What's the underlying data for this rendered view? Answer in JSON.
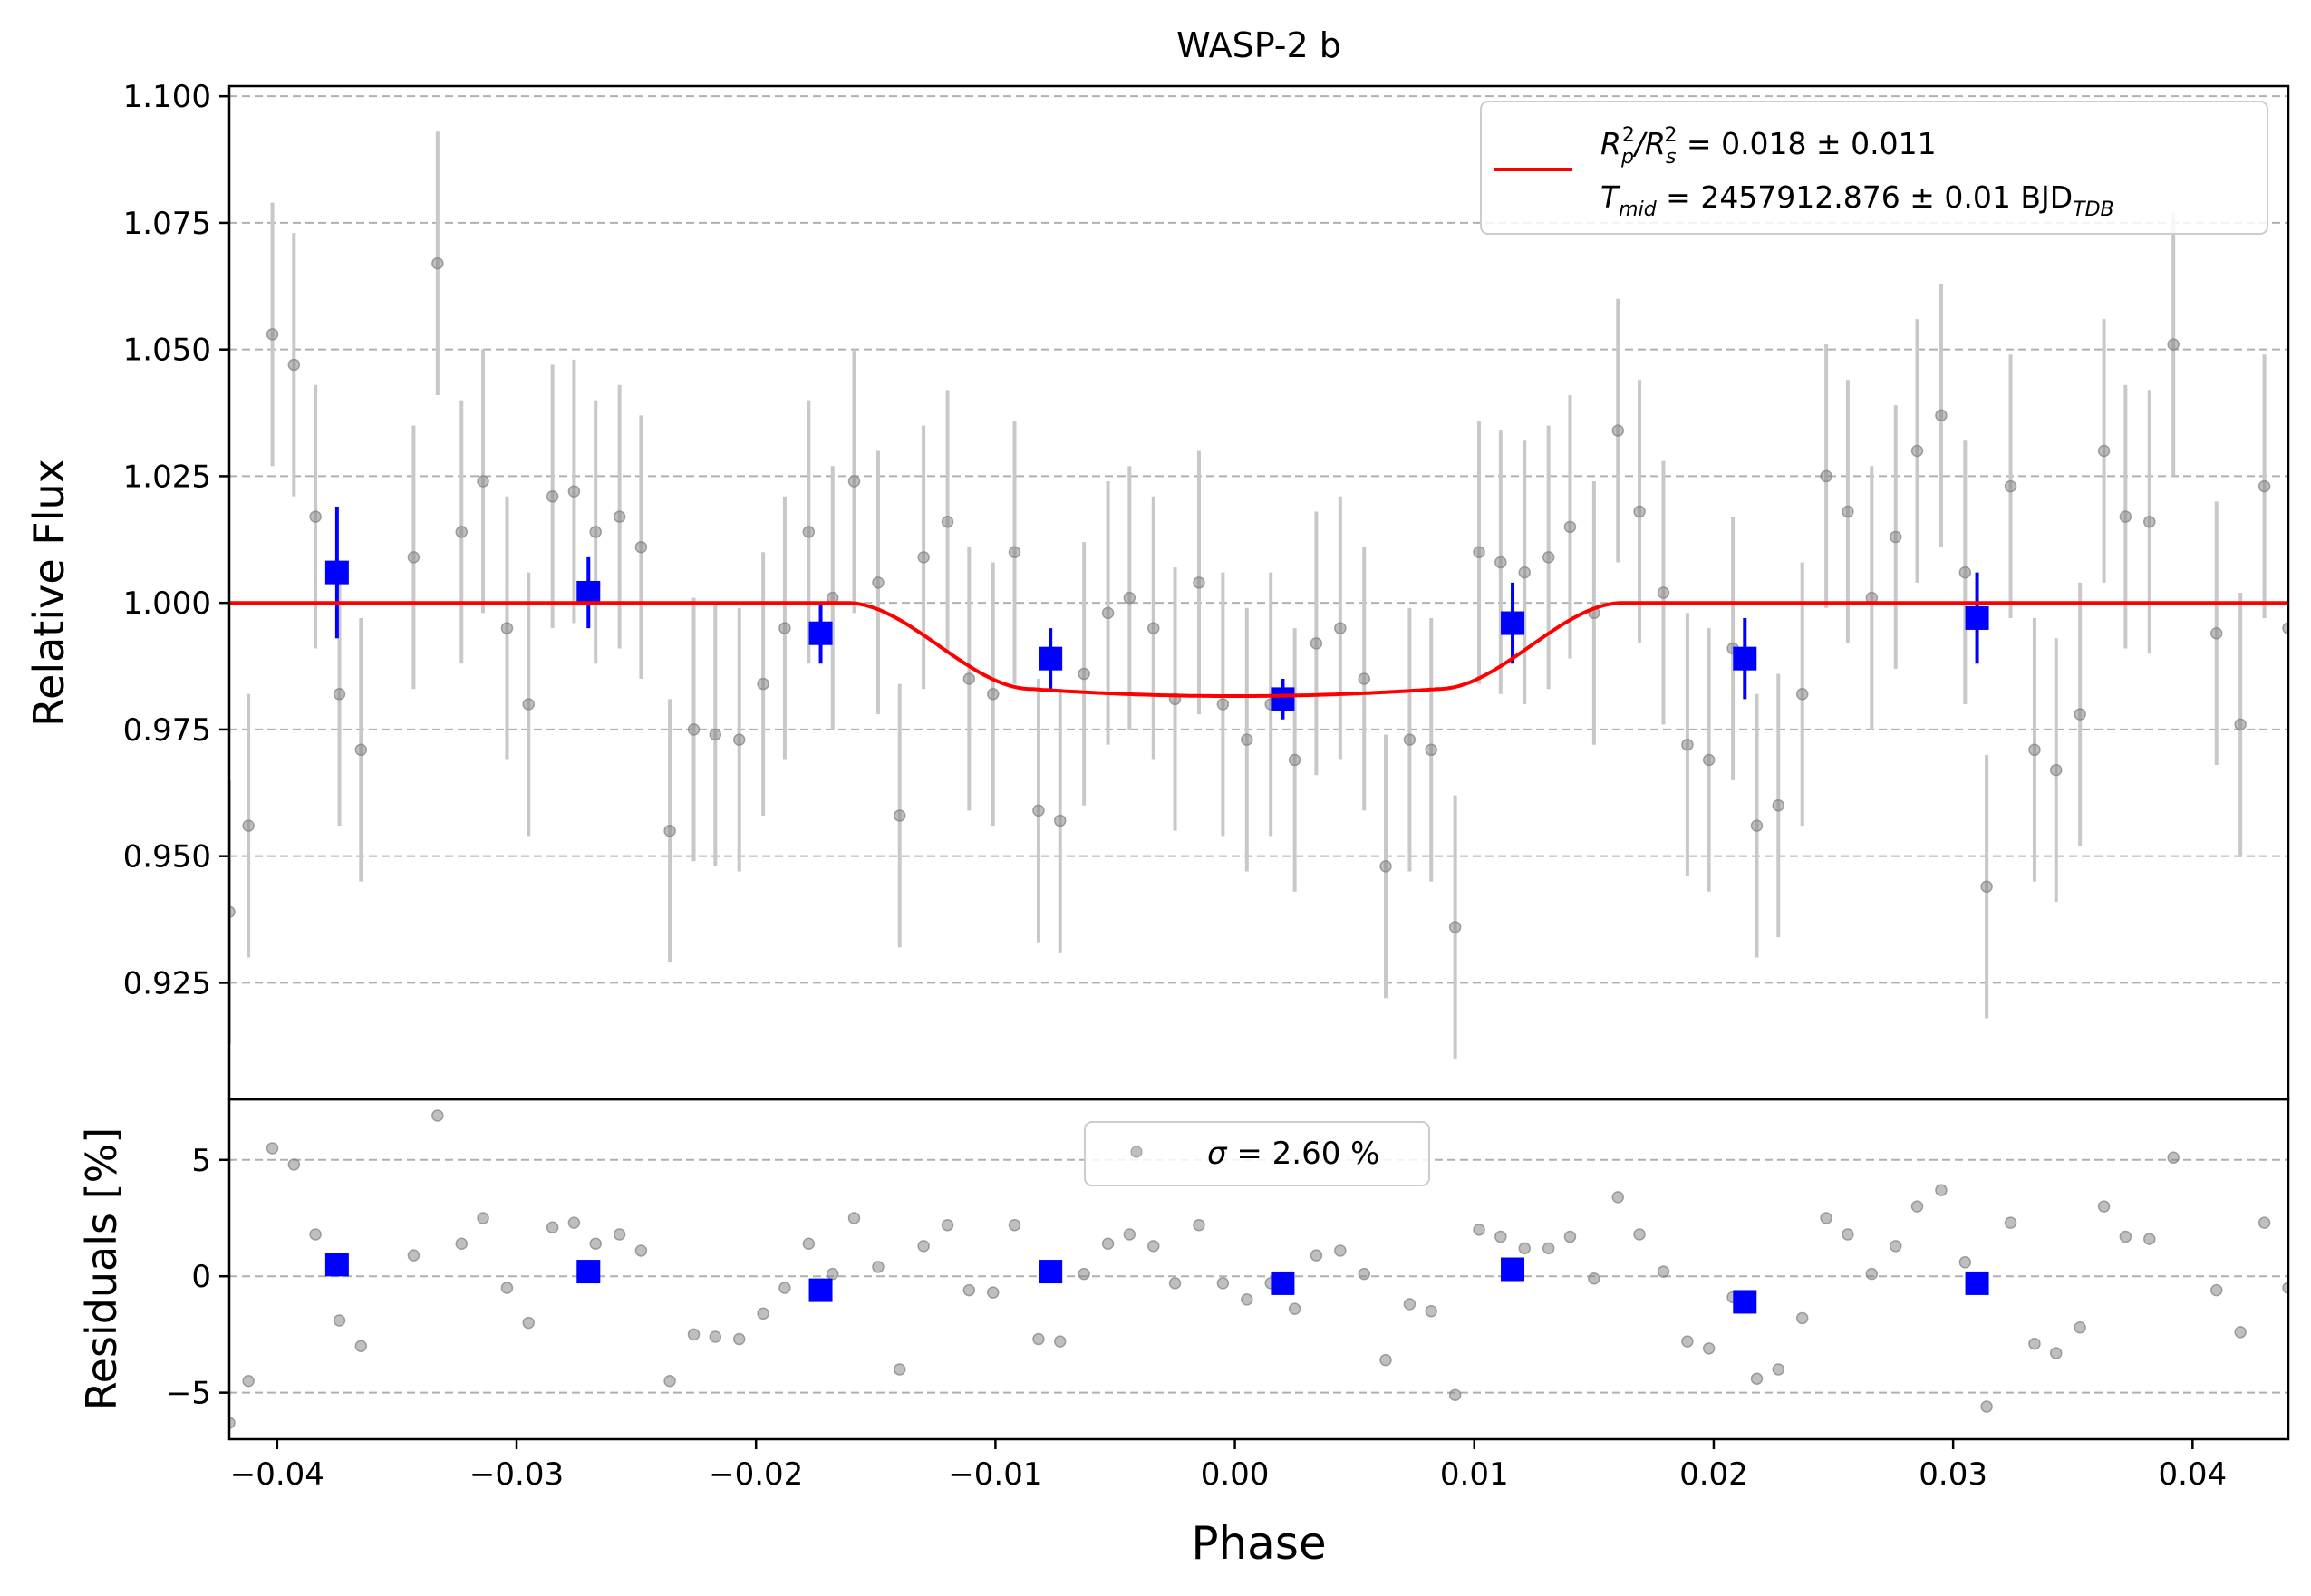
{
  "chart_data": [
    {
      "type": "scatter",
      "panel": "main",
      "title": "WASP-2 b",
      "xlabel": "",
      "ylabel": "Relative Flux",
      "xlim": [
        -0.042,
        0.044
      ],
      "ylim": [
        0.902,
        1.102
      ],
      "yticks": [
        {
          "v": 0.925,
          "label": "0.925"
        },
        {
          "v": 0.95,
          "label": "0.950"
        },
        {
          "v": 0.975,
          "label": "0.975"
        },
        {
          "v": 1.0,
          "label": "1.000"
        },
        {
          "v": 1.025,
          "label": "1.025"
        },
        {
          "v": 1.05,
          "label": "1.050"
        },
        {
          "v": 1.075,
          "label": "1.075"
        },
        {
          "v": 1.1,
          "label": "1.100"
        }
      ],
      "grid": "horizontal dashed",
      "legend_position": "top-right",
      "legend": {
        "line1": {
          "prefix": "R",
          "sub1": "p",
          "sup1": "2",
          "mid": "/R",
          "sub2": "s",
          "sup2": "2",
          "rest": " = 0.018 ± 0.011"
        },
        "line2": {
          "prefix": "T",
          "sub1": "mid",
          "rest": " = 2457912.876 ± 0.01 BJD",
          "sub2": "TDB"
        }
      },
      "colors": {
        "data": "#808080",
        "errorbar": "#c8c8c8",
        "binned": "#0000ff",
        "model": "#ff0000",
        "grid": "#b0b0b0"
      },
      "series": [
        {
          "kind": "data",
          "error": 0.026,
          "points": [
            [
              -0.042,
              0.939
            ],
            [
              -0.0412,
              0.956
            ],
            [
              -0.0402,
              1.053
            ],
            [
              -0.0393,
              1.047
            ],
            [
              -0.0384,
              1.017
            ],
            [
              -0.0374,
              0.982
            ],
            [
              -0.0365,
              0.971
            ],
            [
              -0.0343,
              1.009
            ],
            [
              -0.0333,
              1.067
            ],
            [
              -0.0323,
              1.014
            ],
            [
              -0.0314,
              1.024
            ],
            [
              -0.0304,
              0.995
            ],
            [
              -0.0295,
              0.98
            ],
            [
              -0.0285,
              1.021
            ],
            [
              -0.0276,
              1.022
            ],
            [
              -0.0267,
              1.014
            ],
            [
              -0.0257,
              1.017
            ],
            [
              -0.0248,
              1.011
            ],
            [
              -0.0236,
              0.955
            ],
            [
              -0.0226,
              0.975
            ],
            [
              -0.0217,
              0.974
            ],
            [
              -0.0207,
              0.973
            ],
            [
              -0.0197,
              0.984
            ],
            [
              -0.0188,
              0.995
            ],
            [
              -0.0178,
              1.014
            ],
            [
              -0.0168,
              1.001
            ],
            [
              -0.0159,
              1.024
            ],
            [
              -0.0149,
              1.004
            ],
            [
              -0.014,
              0.958
            ],
            [
              -0.013,
              1.009
            ],
            [
              -0.012,
              1.016
            ],
            [
              -0.0111,
              0.985
            ],
            [
              -0.0101,
              0.982
            ],
            [
              -0.0092,
              1.01
            ],
            [
              -0.0082,
              0.959
            ],
            [
              -0.0073,
              0.957
            ],
            [
              -0.0063,
              0.986
            ],
            [
              -0.0053,
              0.998
            ],
            [
              -0.0044,
              1.001
            ],
            [
              -0.0034,
              0.995
            ],
            [
              -0.0025,
              0.981
            ],
            [
              -0.0015,
              1.004
            ],
            [
              -0.0005,
              0.98
            ],
            [
              0.0005,
              0.973
            ],
            [
              0.0015,
              0.98
            ],
            [
              0.0025,
              0.969
            ],
            [
              0.0034,
              0.992
            ],
            [
              0.0044,
              0.995
            ],
            [
              0.0054,
              0.985
            ],
            [
              0.0063,
              0.948
            ],
            [
              0.0073,
              0.973
            ],
            [
              0.0082,
              0.971
            ],
            [
              0.0092,
              0.936
            ],
            [
              0.0102,
              1.01
            ],
            [
              0.0111,
              1.008
            ],
            [
              0.0121,
              1.006
            ],
            [
              0.0131,
              1.009
            ],
            [
              0.014,
              1.015
            ],
            [
              0.015,
              0.998
            ],
            [
              0.016,
              1.034
            ],
            [
              0.0169,
              1.018
            ],
            [
              0.0179,
              1.002
            ],
            [
              0.0189,
              0.972
            ],
            [
              0.0198,
              0.969
            ],
            [
              0.0208,
              0.991
            ],
            [
              0.0218,
              0.956
            ],
            [
              0.0227,
              0.96
            ],
            [
              0.0237,
              0.982
            ],
            [
              0.0247,
              1.025
            ],
            [
              0.0256,
              1.018
            ],
            [
              0.0266,
              1.001
            ],
            [
              0.0276,
              1.013
            ],
            [
              0.0285,
              1.03
            ],
            [
              0.0295,
              1.037
            ],
            [
              0.0305,
              1.006
            ],
            [
              0.0314,
              0.944
            ],
            [
              0.0324,
              1.023
            ],
            [
              0.0334,
              0.971
            ],
            [
              0.0343,
              0.967
            ],
            [
              0.0353,
              0.978
            ],
            [
              0.0363,
              1.03
            ],
            [
              0.0372,
              1.017
            ],
            [
              0.0382,
              1.016
            ],
            [
              0.0392,
              1.051
            ],
            [
              0.041,
              0.994
            ],
            [
              0.042,
              0.976
            ],
            [
              0.043,
              1.023
            ],
            [
              0.044,
              0.995
            ]
          ]
        },
        {
          "kind": "binned",
          "points": [
            [
              -0.0375,
              1.006,
              0.013
            ],
            [
              -0.027,
              1.002,
              0.007
            ],
            [
              -0.0173,
              0.994,
              0.006
            ],
            [
              -0.0077,
              0.989,
              0.006
            ],
            [
              0.002,
              0.981,
              0.004
            ],
            [
              0.0116,
              0.996,
              0.008
            ],
            [
              0.0213,
              0.989,
              0.008
            ],
            [
              0.031,
              0.997,
              0.009
            ]
          ]
        },
        {
          "kind": "model",
          "t1": -0.0162,
          "t2": -0.0085,
          "t3": 0.0085,
          "t4": 0.0162,
          "depth": 0.017
        }
      ]
    },
    {
      "type": "scatter",
      "panel": "residuals",
      "xlabel": "Phase",
      "ylabel": "Residuals [%]",
      "xlim": [
        -0.042,
        0.044
      ],
      "ylim": [
        -7,
        7.6
      ],
      "xticks": [
        {
          "v": -0.04,
          "label": "−0.04"
        },
        {
          "v": -0.03,
          "label": "−0.03"
        },
        {
          "v": -0.02,
          "label": "−0.02"
        },
        {
          "v": -0.01,
          "label": "−0.01"
        },
        {
          "v": 0.0,
          "label": "0.00"
        },
        {
          "v": 0.01,
          "label": "0.01"
        },
        {
          "v": 0.02,
          "label": "0.02"
        },
        {
          "v": 0.03,
          "label": "0.03"
        },
        {
          "v": 0.04,
          "label": "0.04"
        }
      ],
      "yticks": [
        {
          "v": -5,
          "label": "−5"
        },
        {
          "v": 0,
          "label": "0"
        },
        {
          "v": 5,
          "label": "5"
        }
      ],
      "grid": "horizontal dashed",
      "legend_position": "top-center",
      "legend": {
        "symbol": "σ",
        "rest": " = 2.60 %"
      },
      "series": [
        {
          "kind": "data",
          "points": [
            [
              -0.042,
              -6.3
            ],
            [
              -0.0412,
              -4.5
            ],
            [
              -0.0402,
              5.5
            ],
            [
              -0.0393,
              4.8
            ],
            [
              -0.0384,
              1.8
            ],
            [
              -0.0374,
              -1.9
            ],
            [
              -0.0365,
              -3.0
            ],
            [
              -0.0343,
              0.9
            ],
            [
              -0.0333,
              6.9
            ],
            [
              -0.0323,
              1.4
            ],
            [
              -0.0314,
              2.5
            ],
            [
              -0.0304,
              -0.5
            ],
            [
              -0.0295,
              -2.0
            ],
            [
              -0.0285,
              2.1
            ],
            [
              -0.0276,
              2.3
            ],
            [
              -0.0267,
              1.4
            ],
            [
              -0.0257,
              1.8
            ],
            [
              -0.0248,
              1.1
            ],
            [
              -0.0236,
              -4.5
            ],
            [
              -0.0226,
              -2.5
            ],
            [
              -0.0217,
              -2.6
            ],
            [
              -0.0207,
              -2.7
            ],
            [
              -0.0197,
              -1.6
            ],
            [
              -0.0188,
              -0.5
            ],
            [
              -0.0178,
              1.4
            ],
            [
              -0.0168,
              0.1
            ],
            [
              -0.0159,
              2.5
            ],
            [
              -0.0149,
              0.4
            ],
            [
              -0.014,
              -4.0
            ],
            [
              -0.013,
              1.3
            ],
            [
              -0.012,
              2.2
            ],
            [
              -0.0111,
              -0.6
            ],
            [
              -0.0101,
              -0.7
            ],
            [
              -0.0092,
              2.2
            ],
            [
              -0.0082,
              -2.7
            ],
            [
              -0.0073,
              -2.8
            ],
            [
              -0.0063,
              0.1
            ],
            [
              -0.0053,
              1.4
            ],
            [
              -0.0044,
              1.8
            ],
            [
              -0.0034,
              1.3
            ],
            [
              -0.0025,
              -0.3
            ],
            [
              -0.0015,
              2.2
            ],
            [
              -0.0005,
              -0.3
            ],
            [
              0.0005,
              -1.0
            ],
            [
              0.0015,
              -0.3
            ],
            [
              0.0025,
              -1.4
            ],
            [
              0.0034,
              0.9
            ],
            [
              0.0044,
              1.1
            ],
            [
              0.0054,
              0.1
            ],
            [
              0.0063,
              -3.6
            ],
            [
              0.0073,
              -1.2
            ],
            [
              0.0082,
              -1.5
            ],
            [
              0.0092,
              -5.1
            ],
            [
              0.0102,
              2.0
            ],
            [
              0.0111,
              1.7
            ],
            [
              0.0121,
              1.2
            ],
            [
              0.0131,
              1.2
            ],
            [
              0.014,
              1.7
            ],
            [
              0.015,
              -0.1
            ],
            [
              0.016,
              3.4
            ],
            [
              0.0169,
              1.8
            ],
            [
              0.0179,
              0.2
            ],
            [
              0.0189,
              -2.8
            ],
            [
              0.0198,
              -3.1
            ],
            [
              0.0208,
              -0.9
            ],
            [
              0.0218,
              -4.4
            ],
            [
              0.0227,
              -4.0
            ],
            [
              0.0237,
              -1.8
            ],
            [
              0.0247,
              2.5
            ],
            [
              0.0256,
              1.8
            ],
            [
              0.0266,
              0.1
            ],
            [
              0.0276,
              1.3
            ],
            [
              0.0285,
              3.0
            ],
            [
              0.0295,
              3.7
            ],
            [
              0.0305,
              0.6
            ],
            [
              0.0314,
              -5.6
            ],
            [
              0.0324,
              2.3
            ],
            [
              0.0334,
              -2.9
            ],
            [
              0.0343,
              -3.3
            ],
            [
              0.0353,
              -2.2
            ],
            [
              0.0363,
              3.0
            ],
            [
              0.0372,
              1.7
            ],
            [
              0.0382,
              1.6
            ],
            [
              0.0392,
              5.1
            ],
            [
              0.041,
              -0.6
            ],
            [
              0.042,
              -2.4
            ],
            [
              0.043,
              2.3
            ],
            [
              0.044,
              -0.5
            ]
          ]
        },
        {
          "kind": "binned",
          "points": [
            [
              -0.0375,
              0.5
            ],
            [
              -0.027,
              0.2
            ],
            [
              -0.0173,
              -0.6
            ],
            [
              -0.0077,
              0.2
            ],
            [
              0.002,
              -0.3
            ],
            [
              0.0116,
              0.3
            ],
            [
              0.0213,
              -1.1
            ],
            [
              0.031,
              -0.3
            ]
          ]
        }
      ]
    }
  ]
}
